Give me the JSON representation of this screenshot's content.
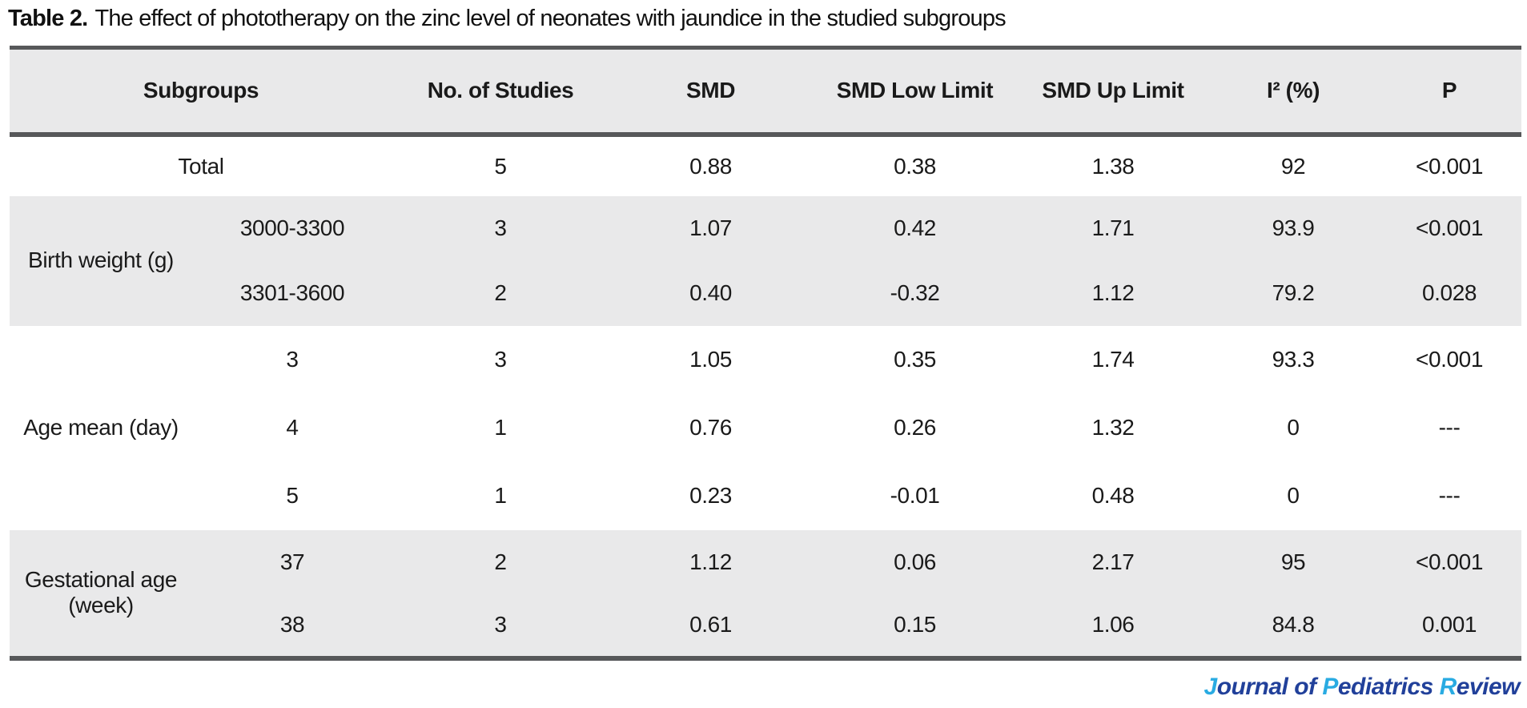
{
  "title": {
    "label": "Table 2.",
    "text": "The effect of phototherapy on the zinc level of neonates with jaundice in the studied subgroups"
  },
  "table": {
    "columns": [
      "Subgroups",
      "No. of Studies",
      "SMD",
      "SMD Low Limit",
      "SMD Up Limit",
      "I² (%)",
      "P"
    ],
    "groups": [
      {
        "label": null,
        "shaded": false,
        "rows": [
          {
            "subgroup": "Total",
            "values": [
              "5",
              "0.88",
              "0.38",
              "1.38",
              "92",
              "<0.001"
            ]
          }
        ]
      },
      {
        "label": "Birth weight (g)",
        "shaded": true,
        "rows": [
          {
            "subgroup": "3000-3300",
            "values": [
              "3",
              "1.07",
              "0.42",
              "1.71",
              "93.9",
              "<0.001"
            ]
          },
          {
            "subgroup": "3301-3600",
            "values": [
              "2",
              "0.40",
              "-0.32",
              "1.12",
              "79.2",
              "0.028"
            ]
          }
        ]
      },
      {
        "label": "Age mean (day)",
        "shaded": false,
        "rows": [
          {
            "subgroup": "3",
            "values": [
              "3",
              "1.05",
              "0.35",
              "1.74",
              "93.3",
              "<0.001"
            ]
          },
          {
            "subgroup": "4",
            "values": [
              "1",
              "0.76",
              "0.26",
              "1.32",
              "0",
              "---"
            ]
          },
          {
            "subgroup": "5",
            "values": [
              "1",
              "0.23",
              "-0.01",
              "0.48",
              "0",
              "---"
            ]
          }
        ]
      },
      {
        "label": "Gestational age (week)",
        "shaded": true,
        "rows": [
          {
            "subgroup": "37",
            "values": [
              "2",
              "1.12",
              "0.06",
              "2.17",
              "95",
              "<0.001"
            ]
          },
          {
            "subgroup": "38",
            "values": [
              "3",
              "0.61",
              "0.15",
              "1.06",
              "84.8",
              "0.001"
            ]
          }
        ]
      }
    ]
  },
  "footer": {
    "text": "Journal of Pediatrics Review",
    "segments": [
      {
        "text": "J",
        "color": "accent"
      },
      {
        "text": "ournal of ",
        "color": "navy"
      },
      {
        "text": "P",
        "color": "accent"
      },
      {
        "text": "ediatrics ",
        "color": "navy"
      },
      {
        "text": "R",
        "color": "accent"
      },
      {
        "text": "eview",
        "color": "navy"
      }
    ]
  },
  "colors": {
    "navy": "#21409a",
    "accent": "#29abe2",
    "shade": "#e9e9ea",
    "line": "#57585a",
    "text": "#1a1a1a"
  }
}
